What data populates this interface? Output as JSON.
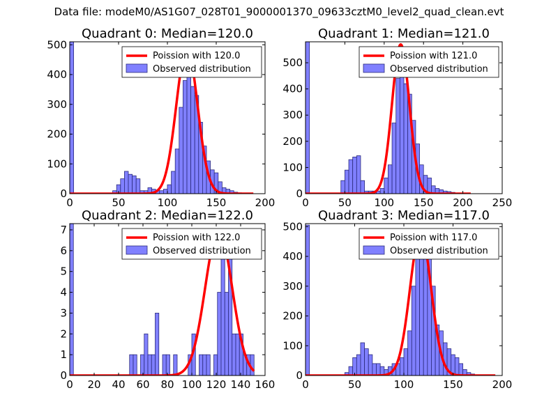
{
  "figure_title": "Data file: modeM0/AS1G07_028T01_9000001370_09633cztM0_level2_quad_clean.evt",
  "colors": {
    "bar_fill": "#8080ff",
    "bar_stroke": "#2a2a7a",
    "curve": "#ff0000",
    "axes": "#000000"
  },
  "chart_data": [
    {
      "type": "bar",
      "title": "Quadrant 0: Median=120.0",
      "legend": [
        "Poission with 120.0",
        "Observed distribution"
      ],
      "legend_position": "top-right",
      "xlim": [
        0,
        200
      ],
      "ylim": [
        0,
        510
      ],
      "xticks": [
        "0",
        "50",
        "100",
        "150",
        "200"
      ],
      "xtick_values": [
        0,
        50,
        100,
        150,
        200
      ],
      "yticks": [
        "0",
        "100",
        "200",
        "300",
        "400",
        "500"
      ],
      "ytick_values": [
        0,
        100,
        200,
        300,
        400,
        500
      ],
      "bin_width": 4,
      "bins": [
        [
          0,
          510
        ],
        [
          44,
          10
        ],
        [
          48,
          30
        ],
        [
          52,
          50
        ],
        [
          56,
          75
        ],
        [
          60,
          65
        ],
        [
          64,
          60
        ],
        [
          68,
          50
        ],
        [
          72,
          10
        ],
        [
          76,
          10
        ],
        [
          80,
          20
        ],
        [
          84,
          15
        ],
        [
          88,
          10
        ],
        [
          92,
          10
        ],
        [
          96,
          15
        ],
        [
          100,
          30
        ],
        [
          104,
          75
        ],
        [
          108,
          150
        ],
        [
          112,
          290
        ],
        [
          116,
          380
        ],
        [
          120,
          400
        ],
        [
          124,
          360
        ],
        [
          128,
          330
        ],
        [
          132,
          240
        ],
        [
          136,
          160
        ],
        [
          140,
          110
        ],
        [
          144,
          80
        ],
        [
          148,
          70
        ],
        [
          152,
          40
        ],
        [
          156,
          20
        ],
        [
          160,
          15
        ],
        [
          164,
          10
        ],
        [
          168,
          5
        ],
        [
          172,
          3
        ]
      ],
      "curve": {
        "mean": 120,
        "peak": 490,
        "sigma": 10.9,
        "xrange": [
          0,
          188
        ]
      }
    },
    {
      "type": "bar",
      "title": "Quadrant 1: Median=121.0",
      "legend": [
        "Poission with 121.0",
        "Observed distribution"
      ],
      "legend_position": "top-right",
      "xlim": [
        0,
        250
      ],
      "ylim": [
        0,
        580
      ],
      "xticks": [
        "0",
        "50",
        "100",
        "150",
        "200",
        "250"
      ],
      "xtick_values": [
        0,
        50,
        100,
        150,
        200,
        250
      ],
      "yticks": [
        "0",
        "100",
        "200",
        "300",
        "400",
        "500"
      ],
      "ytick_values": [
        0,
        100,
        200,
        300,
        400,
        500
      ],
      "bin_width": 5,
      "bins": [
        [
          0,
          580
        ],
        [
          45,
          50
        ],
        [
          50,
          90
        ],
        [
          55,
          130
        ],
        [
          60,
          140
        ],
        [
          65,
          145
        ],
        [
          70,
          50
        ],
        [
          75,
          10
        ],
        [
          80,
          10
        ],
        [
          85,
          10
        ],
        [
          90,
          10
        ],
        [
          95,
          20
        ],
        [
          100,
          60
        ],
        [
          105,
          110
        ],
        [
          110,
          270
        ],
        [
          115,
          440
        ],
        [
          120,
          470
        ],
        [
          125,
          420
        ],
        [
          130,
          380
        ],
        [
          135,
          280
        ],
        [
          140,
          190
        ],
        [
          145,
          110
        ],
        [
          150,
          70
        ],
        [
          155,
          60
        ],
        [
          160,
          30
        ],
        [
          165,
          20
        ],
        [
          170,
          15
        ],
        [
          175,
          10
        ],
        [
          180,
          8
        ],
        [
          185,
          5
        ]
      ],
      "curve": {
        "mean": 121,
        "peak": 570,
        "sigma": 11.0,
        "xrange": [
          0,
          210
        ]
      }
    },
    {
      "type": "bar",
      "title": "Quadrant 2: Median=122.0",
      "legend": [
        "Poission with 122.0",
        "Observed distribution"
      ],
      "legend_position": "top-right",
      "xlim": [
        0,
        160
      ],
      "ylim": [
        0,
        7.3
      ],
      "xticks": [
        "0",
        "20",
        "40",
        "60",
        "80",
        "100",
        "120",
        "140",
        "160"
      ],
      "xtick_values": [
        0,
        20,
        40,
        60,
        80,
        100,
        120,
        140,
        160
      ],
      "yticks": [
        "0",
        "1",
        "2",
        "3",
        "4",
        "5",
        "6",
        "7"
      ],
      "ytick_values": [
        0,
        1,
        2,
        3,
        4,
        5,
        6,
        7
      ],
      "bin_width": 3,
      "bins": [
        [
          0,
          7.3
        ],
        [
          49,
          1
        ],
        [
          52,
          1
        ],
        [
          58,
          1
        ],
        [
          61,
          2
        ],
        [
          64,
          1
        ],
        [
          67,
          1
        ],
        [
          70,
          3
        ],
        [
          76,
          1
        ],
        [
          79,
          1
        ],
        [
          85,
          1
        ],
        [
          97,
          1
        ],
        [
          100,
          2
        ],
        [
          106,
          1
        ],
        [
          109,
          1
        ],
        [
          112,
          1
        ],
        [
          118,
          1
        ],
        [
          121,
          4
        ],
        [
          124,
          6
        ],
        [
          127,
          4
        ],
        [
          130,
          6
        ],
        [
          133,
          2
        ],
        [
          136,
          2
        ],
        [
          139,
          2
        ],
        [
          142,
          1
        ],
        [
          145,
          1
        ],
        [
          148,
          1
        ]
      ],
      "curve": {
        "mean": 122,
        "peak": 7.0,
        "sigma": 11.0,
        "xrange": [
          0,
          151
        ]
      }
    },
    {
      "type": "bar",
      "title": "Quadrant 3: Median=117.0",
      "legend": [
        "Poission with 117.0",
        "Observed distribution"
      ],
      "legend_position": "top-right",
      "xlim": [
        0,
        200
      ],
      "ylim": [
        0,
        510
      ],
      "xticks": [
        "0",
        "50",
        "100",
        "150",
        "200"
      ],
      "xtick_values": [
        0,
        50,
        100,
        150,
        200
      ],
      "yticks": [
        "0",
        "100",
        "200",
        "300",
        "400",
        "500"
      ],
      "ytick_values": [
        0,
        100,
        200,
        300,
        400,
        500
      ],
      "bin_width": 4,
      "bins": [
        [
          0,
          505
        ],
        [
          40,
          10
        ],
        [
          44,
          30
        ],
        [
          48,
          60
        ],
        [
          52,
          70
        ],
        [
          56,
          110
        ],
        [
          60,
          90
        ],
        [
          64,
          70
        ],
        [
          68,
          40
        ],
        [
          72,
          40
        ],
        [
          76,
          30
        ],
        [
          80,
          20
        ],
        [
          84,
          30
        ],
        [
          88,
          40
        ],
        [
          92,
          40
        ],
        [
          96,
          60
        ],
        [
          100,
          90
        ],
        [
          104,
          150
        ],
        [
          108,
          300
        ],
        [
          112,
          430
        ],
        [
          116,
          430
        ],
        [
          120,
          400
        ],
        [
          124,
          400
        ],
        [
          128,
          300
        ],
        [
          132,
          170
        ],
        [
          136,
          150
        ],
        [
          140,
          110
        ],
        [
          144,
          90
        ],
        [
          148,
          70
        ],
        [
          152,
          60
        ],
        [
          156,
          40
        ],
        [
          160,
          20
        ],
        [
          164,
          10
        ],
        [
          168,
          5
        ]
      ],
      "curve": {
        "mean": 117,
        "peak": 480,
        "sigma": 10.8,
        "xrange": [
          0,
          193
        ]
      }
    }
  ]
}
